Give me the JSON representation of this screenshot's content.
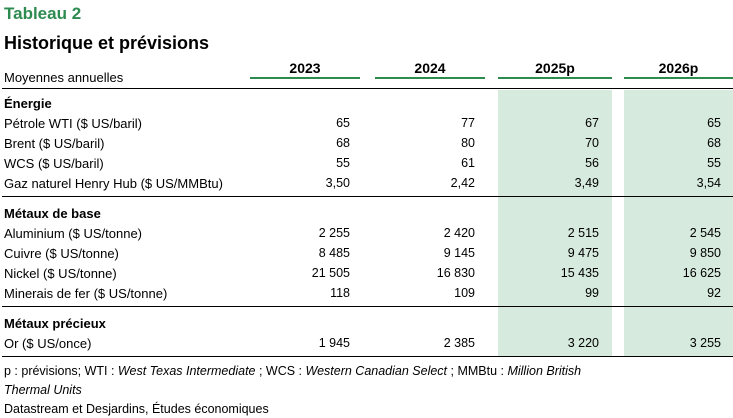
{
  "tag": "Tableau 2",
  "title": "Historique et prévisions",
  "subtitle": "Moyennes annuelles",
  "columns": [
    "2023",
    "2024",
    "2025p",
    "2026p"
  ],
  "colors": {
    "accent": "#2e8b4f",
    "shade": "#d6eadd"
  },
  "sections": [
    {
      "title": "Énergie",
      "rows": [
        {
          "label": "Pétrole WTI ($ US/baril)",
          "values": [
            "65",
            "77",
            "67",
            "65"
          ]
        },
        {
          "label": "Brent ($ US/baril)",
          "values": [
            "68",
            "80",
            "70",
            "68"
          ]
        },
        {
          "label": "WCS ($ US/baril)",
          "values": [
            "55",
            "61",
            "56",
            "55"
          ]
        },
        {
          "label": "Gaz naturel Henry Hub ($ US/MMBtu)",
          "values": [
            "3,50",
            "2,42",
            "3,49",
            "3,54"
          ]
        }
      ]
    },
    {
      "title": "Métaux de base",
      "rows": [
        {
          "label": "Aluminium ($ US/tonne)",
          "values": [
            "2 255",
            "2 420",
            "2 515",
            "2 545"
          ]
        },
        {
          "label": "Cuivre ($ US/tonne)",
          "values": [
            "8 485",
            "9 145",
            "9 475",
            "9 850"
          ]
        },
        {
          "label": "Nickel ($ US/tonne)",
          "values": [
            "21 505",
            "16 830",
            "15 435",
            "16 625"
          ]
        },
        {
          "label": "Minerais de fer ($ US/tonne)",
          "values": [
            "118",
            "109",
            "99",
            "92"
          ]
        }
      ]
    },
    {
      "title": "Métaux précieux",
      "rows": [
        {
          "label": "Or ($ US/once)",
          "values": [
            "1 945",
            "2 385",
            "3 220",
            "3 255"
          ]
        }
      ]
    }
  ],
  "footnote": {
    "p1": "p : prévisions; WTI : ",
    "i1": "West Texas Intermediate",
    "p2": " ; WCS : ",
    "i2": "Western Canadian Select",
    "p3": " ; MMBtu : ",
    "i3": "Million British",
    "i4": "Thermal Units"
  },
  "source": "Datastream et Desjardins, Études économiques"
}
